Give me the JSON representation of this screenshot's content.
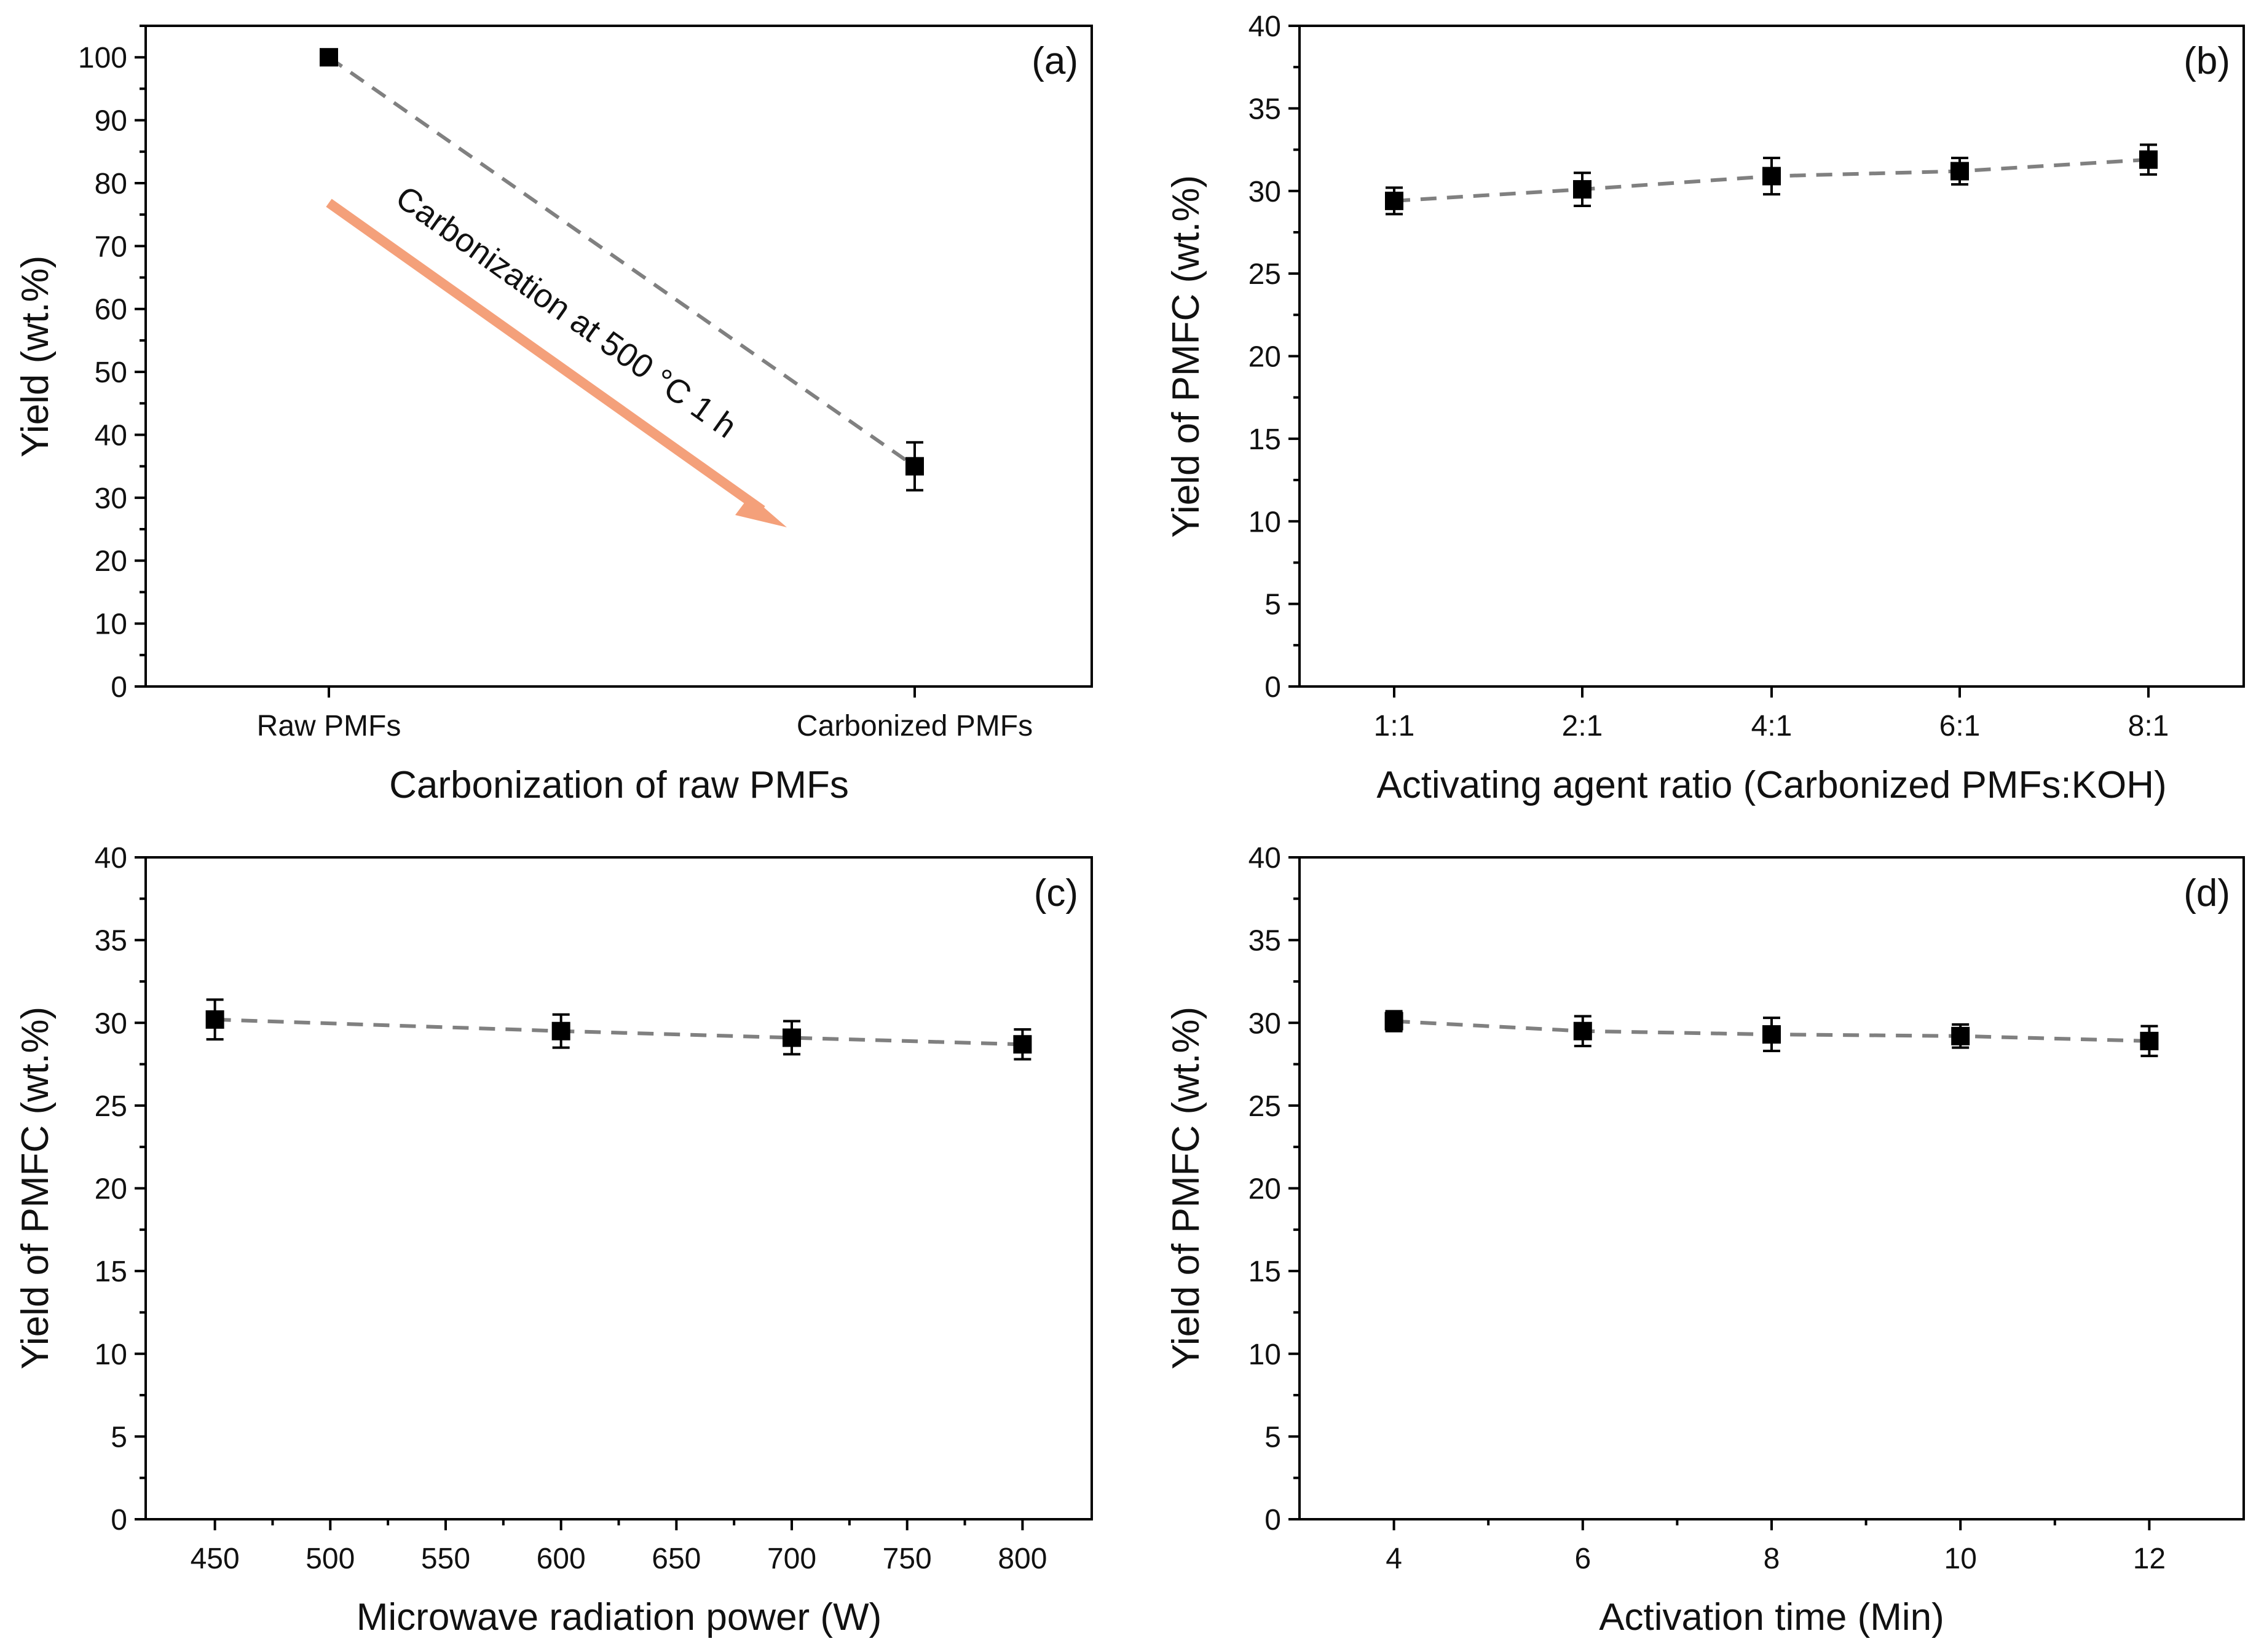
{
  "chart_data": [
    {
      "panel": "(a)",
      "type": "scatter",
      "categories": [
        "Raw PMFs",
        "Carbonized PMFs"
      ],
      "values": [
        100,
        35
      ],
      "errors": [
        0,
        3.8
      ],
      "xlabel": "Carbonization of raw PMFs",
      "ylabel": "Yield (wt.%)",
      "ylim": [
        0,
        105
      ],
      "yticks": [
        0,
        10,
        20,
        30,
        40,
        50,
        60,
        70,
        80,
        90,
        100
      ],
      "ytick_labels": [
        "0",
        "10",
        "20",
        "30",
        "40",
        "50",
        "60",
        "70",
        "80",
        "90",
        "100"
      ],
      "line_style": "dashed",
      "annotation": "Carbonization at 500 °C 1 h",
      "colors": {
        "marker": "#000000",
        "line": "#808080",
        "arrow": "#f4a07a"
      }
    },
    {
      "panel": "(b)",
      "type": "scatter",
      "categories": [
        "1:1",
        "2:1",
        "4:1",
        "6:1",
        "8:1"
      ],
      "values": [
        29.4,
        30.1,
        30.9,
        31.2,
        31.9
      ],
      "errors": [
        0.8,
        1.0,
        1.1,
        0.8,
        0.9
      ],
      "xlabel": "Activating agent ratio (Carbonized PMFs:KOH)",
      "ylabel": "Yield of PMFC  (wt.%)",
      "ylim": [
        0,
        40
      ],
      "yticks": [
        0,
        5,
        10,
        15,
        20,
        25,
        30,
        35,
        40
      ],
      "ytick_labels": [
        "0",
        "5",
        "10",
        "15",
        "20",
        "25",
        "30",
        "35",
        "40"
      ],
      "line_style": "dashed",
      "colors": {
        "marker": "#000000",
        "line": "#808080"
      }
    },
    {
      "panel": "(c)",
      "type": "scatter",
      "x": [
        450,
        600,
        700,
        800
      ],
      "values": [
        30.2,
        29.5,
        29.1,
        28.7
      ],
      "errors": [
        1.2,
        1.0,
        1.0,
        0.9
      ],
      "xlabel": "Microwave radiation power (W)",
      "ylabel": "Yield of PMFC  (wt.%)",
      "xlim": [
        420,
        830
      ],
      "xticks": [
        450,
        500,
        550,
        600,
        650,
        700,
        750,
        800
      ],
      "xtick_labels": [
        "450",
        "500",
        "550",
        "600",
        "650",
        "700",
        "750",
        "800"
      ],
      "ylim": [
        0,
        40
      ],
      "yticks": [
        0,
        5,
        10,
        15,
        20,
        25,
        30,
        35,
        40
      ],
      "ytick_labels": [
        "0",
        "5",
        "10",
        "15",
        "20",
        "25",
        "30",
        "35",
        "40"
      ],
      "line_style": "dashed",
      "colors": {
        "marker": "#000000",
        "line": "#808080"
      }
    },
    {
      "panel": "(d)",
      "type": "scatter",
      "x": [
        4,
        6,
        8,
        10,
        12
      ],
      "values": [
        30.1,
        29.5,
        29.3,
        29.2,
        28.9
      ],
      "errors": [
        0.6,
        0.9,
        1.0,
        0.7,
        0.9
      ],
      "xlabel": "Activation time (Min)",
      "ylabel": "Yield of PMFC  (wt.%)",
      "xlim": [
        3,
        13
      ],
      "xticks": [
        4,
        6,
        8,
        10,
        12
      ],
      "xtick_labels": [
        "4",
        "6",
        "8",
        "10",
        "12"
      ],
      "ylim": [
        0,
        40
      ],
      "yticks": [
        0,
        5,
        10,
        15,
        20,
        25,
        30,
        35,
        40
      ],
      "ytick_labels": [
        "0",
        "5",
        "10",
        "15",
        "20",
        "25",
        "30",
        "35",
        "40"
      ],
      "line_style": "dashed",
      "colors": {
        "marker": "#000000",
        "line": "#808080"
      }
    }
  ]
}
